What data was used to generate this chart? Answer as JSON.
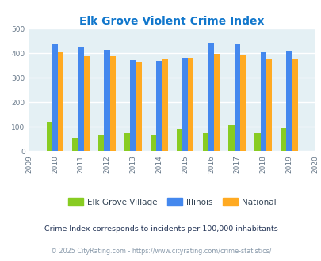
{
  "title": "Elk Grove Violent Crime Index",
  "years": [
    2010,
    2011,
    2012,
    2013,
    2014,
    2015,
    2016,
    2017,
    2018,
    2019
  ],
  "elk_grove": [
    120,
    55,
    67,
    77,
    65,
    93,
    77,
    108,
    74,
    96
  ],
  "illinois": [
    435,
    428,
    414,
    373,
    370,
    383,
    440,
    438,
    405,
    408
  ],
  "national": [
    405,
    388,
    388,
    367,
    376,
    383,
    397,
    394,
    379,
    379
  ],
  "bar_colors": {
    "elk_grove": "#88cc22",
    "illinois": "#4488ee",
    "national": "#ffaa22"
  },
  "bg_color": "#e4f0f4",
  "ylim": [
    0,
    500
  ],
  "yticks": [
    0,
    100,
    200,
    300,
    400,
    500
  ],
  "xlim": [
    2009,
    2020
  ],
  "xticks": [
    2009,
    2010,
    2011,
    2012,
    2013,
    2014,
    2015,
    2016,
    2017,
    2018,
    2019,
    2020
  ],
  "legend_labels": [
    "Elk Grove Village",
    "Illinois",
    "National"
  ],
  "footnote1": "Crime Index corresponds to incidents per 100,000 inhabitants",
  "footnote2": "© 2025 CityRating.com - https://www.cityrating.com/crime-statistics/",
  "title_color": "#1177cc",
  "footnote1_color": "#223355",
  "footnote2_color": "#8899aa",
  "bar_width": 0.22
}
